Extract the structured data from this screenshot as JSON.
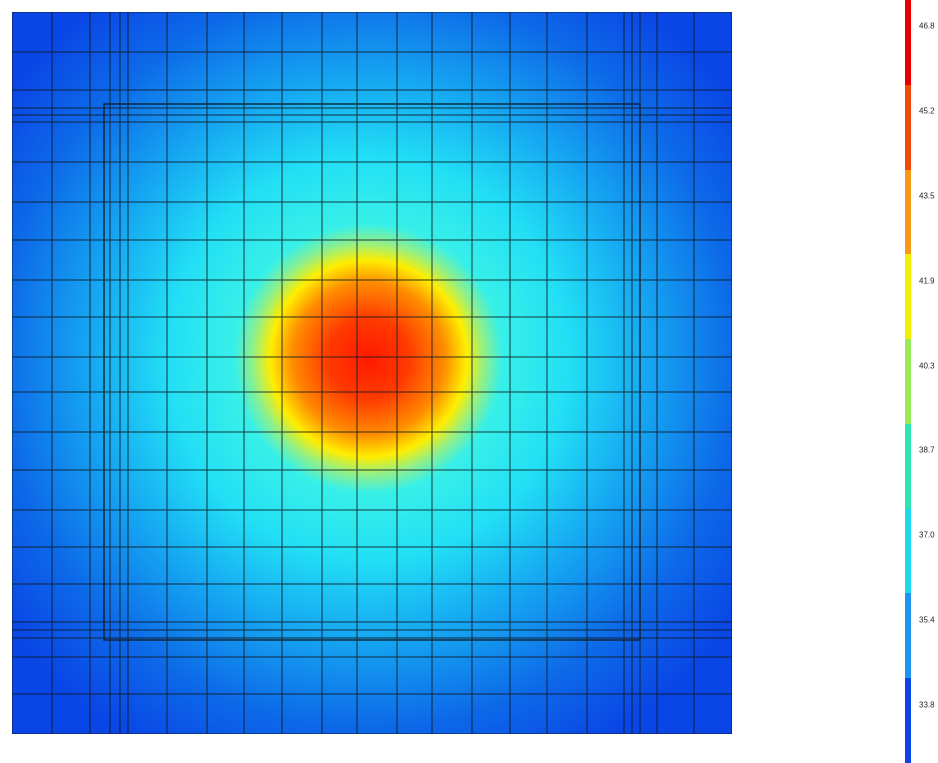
{
  "figure": {
    "kind": "temperature contour with mesh overlay",
    "field": {
      "peak_color": "#ff1a00",
      "edge_color": "#0a46e6",
      "shape": "radial hot spot centered slightly above-left of center"
    }
  },
  "legend": {
    "labels": [
      "46.8",
      "45.2",
      "43.5",
      "41.9",
      "40.3",
      "38.7",
      "37.0",
      "35.4",
      "33.8"
    ],
    "colors": [
      "#e60000",
      "#f04a0a",
      "#f59a14",
      "#f0f000",
      "#9bea5a",
      "#2ee6b4",
      "#1ed8f0",
      "#1e96f0",
      "#0a46e6"
    ]
  }
}
